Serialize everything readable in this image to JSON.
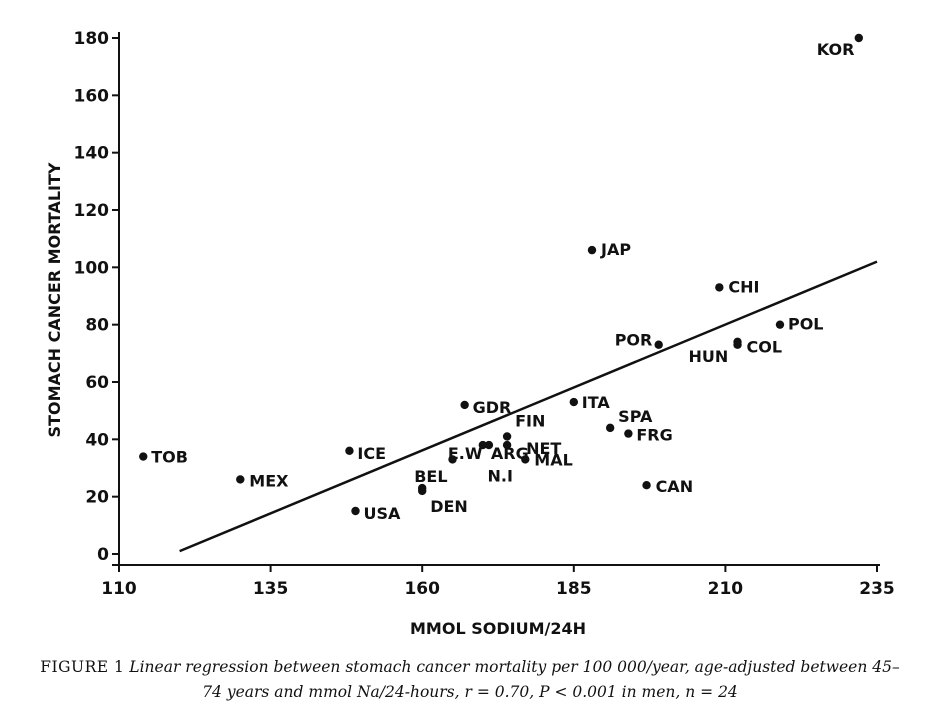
{
  "chart_data": {
    "type": "scatter",
    "xlabel": "MMOL SODIUM/24H",
    "ylabel": "STOMACH CANCER MORTALITY",
    "xlim": [
      110,
      235
    ],
    "ylim": [
      0,
      180
    ],
    "xticks": [
      110,
      135,
      160,
      185,
      210,
      235
    ],
    "yticks": [
      0,
      20,
      40,
      60,
      80,
      100,
      120,
      140,
      160,
      180
    ],
    "grid": false,
    "points": [
      {
        "label": "KOR",
        "x": 232,
        "y": 180
      },
      {
        "label": "JAP",
        "x": 188,
        "y": 106
      },
      {
        "label": "CHI",
        "x": 209,
        "y": 93
      },
      {
        "label": "POL",
        "x": 219,
        "y": 80
      },
      {
        "label": "POR",
        "x": 199,
        "y": 73
      },
      {
        "label": "HUN",
        "x": 212,
        "y": 74
      },
      {
        "label": "COL",
        "x": 212,
        "y": 73
      },
      {
        "label": "ITA",
        "x": 185,
        "y": 53
      },
      {
        "label": "GDR",
        "x": 167,
        "y": 52
      },
      {
        "label": "SPA",
        "x": 191,
        "y": 44
      },
      {
        "label": "FRG",
        "x": 194,
        "y": 42
      },
      {
        "label": "FIN",
        "x": 174,
        "y": 41
      },
      {
        "label": "NET",
        "x": 174,
        "y": 38
      },
      {
        "label": "ARG",
        "x": 171,
        "y": 38
      },
      {
        "label": "E.W",
        "x": 170,
        "y": 38
      },
      {
        "label": "N.I",
        "x": 165,
        "y": 33
      },
      {
        "label": "MAL",
        "x": 177,
        "y": 33
      },
      {
        "label": "ICE",
        "x": 148,
        "y": 36
      },
      {
        "label": "TOB",
        "x": 114,
        "y": 34
      },
      {
        "label": "MEX",
        "x": 130,
        "y": 26
      },
      {
        "label": "BEL",
        "x": 160,
        "y": 23
      },
      {
        "label": "DEN",
        "x": 160,
        "y": 22
      },
      {
        "label": "CAN",
        "x": 197,
        "y": 24
      },
      {
        "label": "USA",
        "x": 149,
        "y": 15
      }
    ],
    "regression_line": {
      "x": [
        120,
        235
      ],
      "y": [
        1,
        102
      ]
    }
  },
  "caption": {
    "figure_label": "FIGURE 1",
    "text": "Linear regression between stomach cancer mortality per 100 000/year, age-adjusted between 45–74 years and mmol Na/24-hours, r = 0.70, P < 0.001 in men, n = 24"
  }
}
